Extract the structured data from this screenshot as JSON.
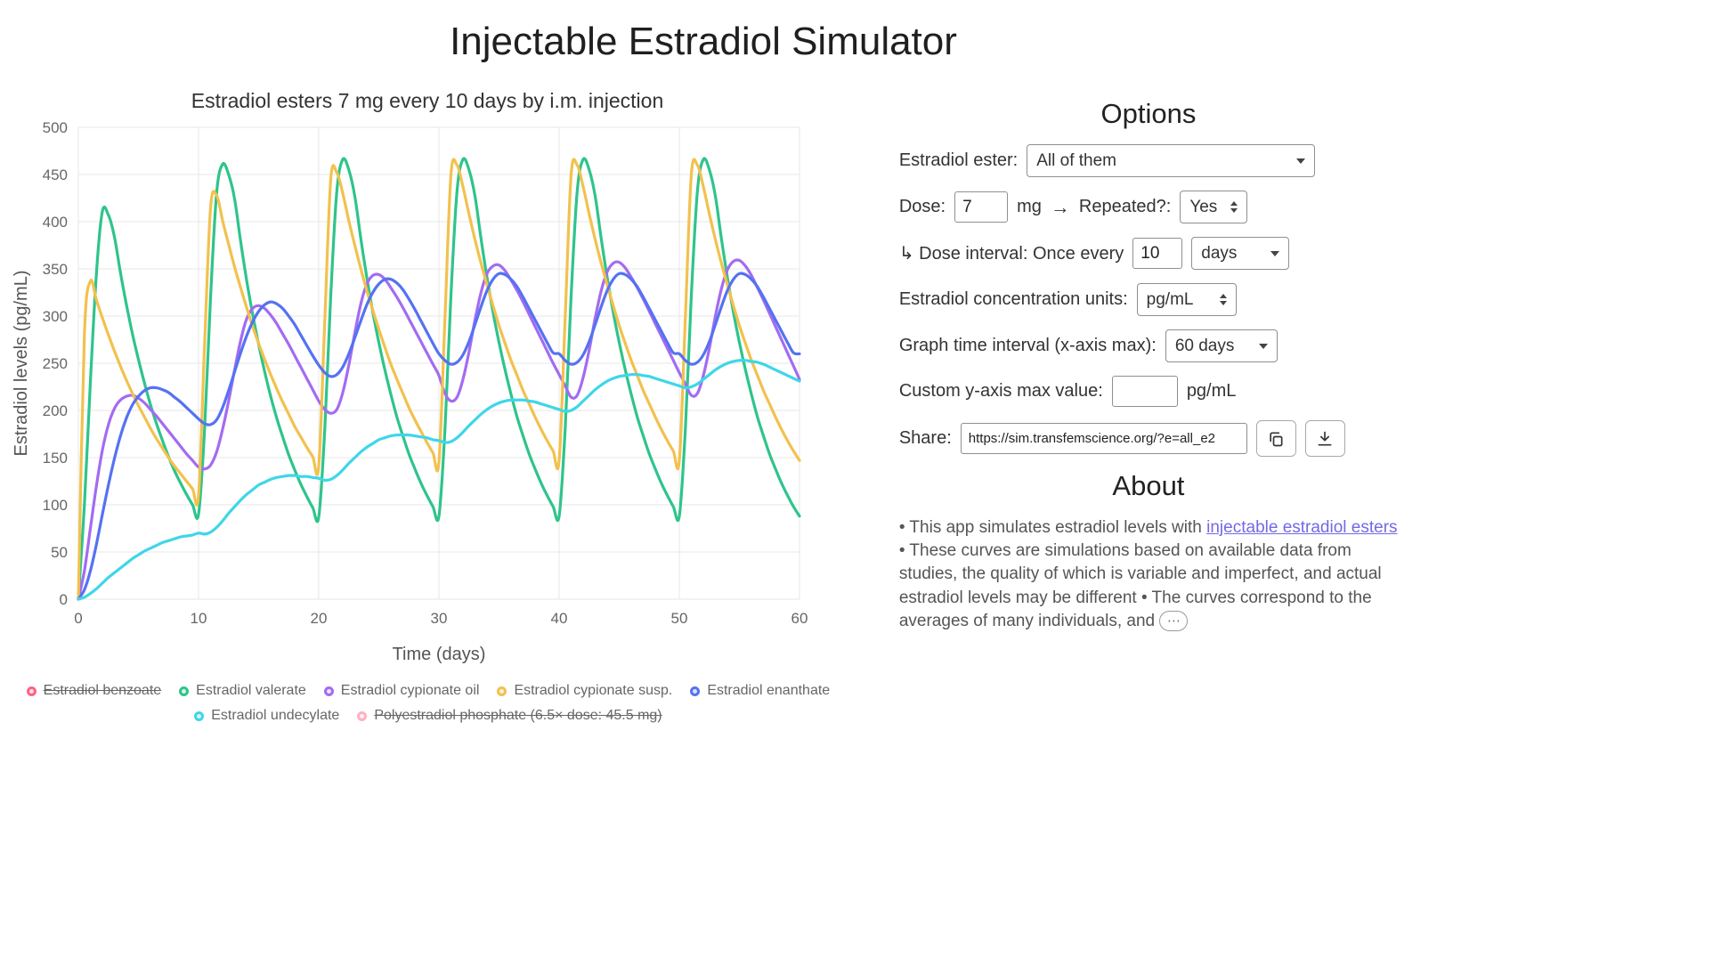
{
  "page": {
    "title": "Injectable Estradiol Simulator"
  },
  "chart_data": {
    "type": "line",
    "title": "Estradiol esters 7 mg every 10 days by i.m. injection",
    "xlabel": "Time (days)",
    "ylabel": "Estradiol levels (pg/mL)",
    "xlim": [
      0,
      60
    ],
    "ylim": [
      0,
      500
    ],
    "x_ticks": [
      0,
      10,
      20,
      30,
      40,
      50,
      60
    ],
    "y_ticks": [
      0,
      50,
      100,
      150,
      200,
      250,
      300,
      350,
      400,
      450,
      500
    ],
    "grid": true,
    "legend_position": "bottom",
    "x_start": 0,
    "x_step": 0.5,
    "series": [
      {
        "name": "Estradiol benzoate",
        "color": "#ff6384",
        "hidden": true,
        "values": []
      },
      {
        "name": "Estradiol valerate",
        "color": "#2ec48b",
        "hidden": false,
        "values": [
          0,
          100,
          230,
          345,
          411,
          407,
          384,
          346,
          312,
          281,
          254,
          229,
          206,
          186,
          168,
          151,
          136,
          123,
          111,
          100,
          90,
          180,
          320,
          430,
          461,
          450,
          424,
          379,
          338,
          302,
          270,
          241,
          215,
          192,
          172,
          153,
          137,
          122,
          109,
          97,
          87,
          180,
          322,
          432,
          466,
          455,
          427,
          382,
          341,
          304,
          272,
          243,
          217,
          193,
          173,
          154,
          138,
          123,
          110,
          98,
          88,
          180,
          322,
          432,
          466,
          455,
          427,
          382,
          341,
          304,
          272,
          243,
          217,
          193,
          173,
          154,
          138,
          123,
          110,
          98,
          88,
          180,
          322,
          432,
          466,
          455,
          427,
          382,
          341,
          304,
          272,
          243,
          217,
          193,
          173,
          154,
          138,
          123,
          110,
          98,
          88,
          180,
          322,
          432,
          466,
          455,
          427,
          382,
          341,
          304,
          272,
          243,
          217,
          193,
          173,
          154,
          138,
          123,
          110,
          98,
          88
        ]
      },
      {
        "name": "Estradiol cypionate oil",
        "color": "#a36bf2",
        "hidden": false,
        "values": [
          0,
          30,
          75,
          120,
          158,
          185,
          202,
          211,
          215,
          216,
          213,
          208,
          201,
          194,
          186,
          178,
          170,
          162,
          154,
          147,
          140,
          138,
          142,
          156,
          180,
          210,
          243,
          274,
          297,
          308,
          311,
          308,
          301,
          292,
          281,
          270,
          258,
          246,
          234,
          222,
          210,
          201,
          197,
          201,
          219,
          248,
          282,
          313,
          334,
          343,
          344,
          339,
          330,
          320,
          309,
          297,
          285,
          273,
          261,
          249,
          237,
          218,
          210,
          214,
          233,
          262,
          296,
          325,
          345,
          353,
          354,
          348,
          338,
          327,
          315,
          302,
          289,
          276,
          263,
          250,
          238,
          226,
          214,
          216,
          235,
          264,
          298,
          327,
          347,
          356,
          357,
          351,
          341,
          330,
          318,
          305,
          292,
          279,
          266,
          253,
          240,
          228,
          216,
          218,
          237,
          266,
          300,
          329,
          349,
          358,
          359,
          353,
          343,
          330,
          317,
          303,
          289,
          275,
          261,
          247,
          233
        ]
      },
      {
        "name": "Estradiol cypionate susp.",
        "color": "#f2c14e",
        "hidden": false,
        "values": [
          0,
          280,
          337,
          317,
          298,
          280,
          263,
          247,
          232,
          218,
          205,
          193,
          181,
          170,
          160,
          150,
          141,
          133,
          125,
          117,
          110,
          270,
          415,
          428,
          401,
          376,
          352,
          330,
          309,
          289,
          271,
          254,
          238,
          223,
          209,
          196,
          183,
          172,
          161,
          151,
          141,
          295,
          445,
          452,
          430,
          401,
          375,
          350,
          327,
          306,
          286,
          267,
          249,
          233,
          218,
          203,
          190,
          178,
          166,
          155,
          145,
          298,
          450,
          460,
          437,
          408,
          381,
          356,
          333,
          311,
          290,
          271,
          253,
          237,
          221,
          207,
          193,
          180,
          168,
          157,
          147,
          298,
          450,
          460,
          437,
          408,
          381,
          356,
          333,
          311,
          290,
          271,
          253,
          237,
          221,
          207,
          193,
          180,
          168,
          157,
          147,
          298,
          450,
          460,
          437,
          408,
          381,
          356,
          333,
          311,
          290,
          271,
          253,
          237,
          221,
          207,
          193,
          180,
          168,
          157,
          147
        ]
      },
      {
        "name": "Estradiol enanthate",
        "color": "#5572f2",
        "hidden": false,
        "values": [
          0,
          10,
          30,
          58,
          90,
          121,
          149,
          173,
          192,
          206,
          215,
          221,
          224,
          224,
          222,
          219,
          214,
          209,
          203,
          197,
          191,
          186,
          185,
          190,
          203,
          221,
          241,
          261,
          279,
          294,
          305,
          312,
          315,
          313,
          308,
          300,
          291,
          280,
          269,
          258,
          248,
          240,
          236,
          238,
          246,
          260,
          277,
          295,
          312,
          325,
          334,
          339,
          339,
          335,
          328,
          318,
          307,
          295,
          283,
          271,
          260,
          253,
          249,
          251,
          259,
          273,
          291,
          310,
          327,
          339,
          345,
          344,
          339,
          331,
          320,
          308,
          296,
          284,
          272,
          261,
          260,
          253,
          249,
          251,
          259,
          273,
          291,
          310,
          327,
          339,
          345,
          344,
          339,
          331,
          320,
          308,
          296,
          284,
          272,
          261,
          260,
          253,
          249,
          251,
          259,
          273,
          291,
          310,
          327,
          339,
          345,
          344,
          339,
          331,
          320,
          308,
          296,
          284,
          272,
          261,
          260
        ]
      },
      {
        "name": "Estradiol undecylate",
        "color": "#3fd6e8",
        "hidden": false,
        "values": [
          0,
          2,
          6,
          11,
          17,
          23,
          28,
          33,
          38,
          43,
          47,
          51,
          54,
          57,
          60,
          62,
          64,
          66,
          67,
          68,
          70,
          69,
          71,
          76,
          83,
          91,
          98,
          105,
          111,
          116,
          121,
          124,
          127,
          129,
          130,
          131,
          131,
          130,
          130,
          129,
          128,
          126,
          127,
          131,
          137,
          144,
          150,
          156,
          161,
          165,
          169,
          171,
          173,
          174,
          174,
          174,
          173,
          172,
          171,
          169,
          168,
          166,
          167,
          171,
          177,
          184,
          190,
          196,
          201,
          205,
          208,
          210,
          211,
          211,
          211,
          210,
          209,
          207,
          205,
          203,
          201,
          199,
          200,
          204,
          210,
          216,
          222,
          227,
          231,
          234,
          236,
          237,
          238,
          238,
          237,
          236,
          234,
          232,
          230,
          228,
          226,
          224,
          225,
          228,
          233,
          238,
          243,
          247,
          250,
          252,
          253,
          253,
          252,
          251,
          249,
          246,
          243,
          240,
          237,
          234,
          231
        ]
      },
      {
        "name": "Polyestradiol phosphate (6.5× dose: 45.5 mg)",
        "color": "#ffb1c1",
        "hidden": true,
        "values": []
      }
    ]
  },
  "options": {
    "title": "Options",
    "ester_label": "Estradiol ester:",
    "ester_value": "All of them",
    "dose_label": "Dose:",
    "dose_value": "7",
    "dose_unit": "mg",
    "arrow_icon": "→",
    "repeated_label": "Repeated?:",
    "repeated_value": "Yes",
    "interval_label": "↳ Dose interval: Once every",
    "interval_value": "10",
    "interval_unit_value": "days",
    "units_label": "Estradiol concentration units:",
    "units_value": "pg/mL",
    "graph_interval_label": "Graph time interval (x-axis max):",
    "graph_interval_value": "60 days",
    "ymax_label": "Custom y-axis max value:",
    "ymax_value": "",
    "ymax_unit": "pg/mL",
    "share_label": "Share:",
    "share_url": "https://sim.transfemscience.org/?e=all_e2"
  },
  "about": {
    "title": "About",
    "text1": "• This app simulates estradiol levels with ",
    "link_text": "injectable estradiol esters",
    "text2": " • These curves are simulations based on available data from studies, the quality of which is variable and imperfect, and actual estradiol levels may be different • The curves correspond to the averages of many individuals, and ",
    "more_icon": "⋯"
  }
}
